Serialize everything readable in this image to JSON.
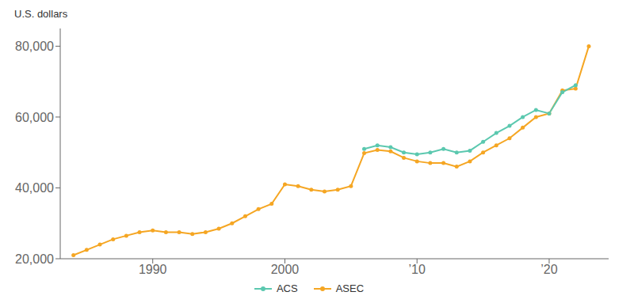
{
  "chart_data": {
    "type": "line",
    "y_label": "U.S. dollars",
    "xlim": [
      1983,
      2024.5
    ],
    "xticks": [
      1990,
      2000,
      {
        "value": 2010,
        "label": "’10"
      },
      {
        "value": 2020,
        "label": "’20"
      }
    ],
    "ylim": [
      20000,
      85000
    ],
    "yticks": [
      {
        "value": 20000,
        "label": "20,000"
      },
      {
        "value": 40000,
        "label": "40,000"
      },
      {
        "value": 60000,
        "label": "60,000"
      },
      {
        "value": 80000,
        "label": "80,000"
      }
    ],
    "grid": false,
    "legend": "bottom",
    "series": [
      {
        "name": "ACS",
        "color": "#5BC8AF",
        "marker": "circle",
        "x": [
          2006,
          2007,
          2008,
          2009,
          2010,
          2011,
          2012,
          2013,
          2014,
          2015,
          2016,
          2017,
          2018,
          2019,
          2020,
          2021,
          2022
        ],
        "values": [
          51000,
          52000,
          51500,
          50000,
          49500,
          50000,
          51000,
          50000,
          50500,
          53000,
          55500,
          57500,
          60000,
          62000,
          61000,
          67000,
          69000
        ]
      },
      {
        "name": "ASEC",
        "color": "#F5A623",
        "marker": "circle",
        "x": [
          1984,
          1985,
          1986,
          1987,
          1988,
          1989,
          1990,
          1991,
          1992,
          1993,
          1994,
          1995,
          1996,
          1997,
          1998,
          1999,
          2000,
          2001,
          2002,
          2003,
          2004,
          2005,
          2006,
          2007,
          2008,
          2009,
          2010,
          2011,
          2012,
          2013,
          2014,
          2015,
          2016,
          2017,
          2018,
          2019,
          2020,
          2021,
          2022,
          2023
        ],
        "values": [
          21000,
          22500,
          24000,
          25500,
          26500,
          27500,
          28000,
          27500,
          27500,
          27000,
          27500,
          28500,
          30000,
          32000,
          34000,
          35500,
          41000,
          40500,
          39500,
          39000,
          39500,
          40500,
          49800,
          50700,
          50300,
          48500,
          47500,
          47000,
          47000,
          46000,
          47500,
          50000,
          52000,
          54000,
          57000,
          60000,
          61000,
          67500,
          68000,
          80000
        ]
      }
    ]
  }
}
